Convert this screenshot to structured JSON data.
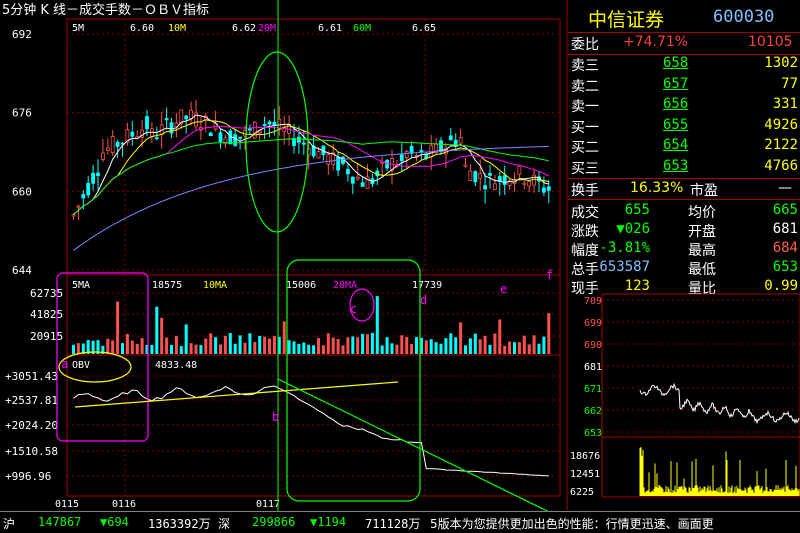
{
  "header": {
    "title": "5分钟  K 线－成交手数－ＯＢＶ指标",
    "ma_labels": [
      {
        "label": "5M",
        "value": "6.60",
        "color": "#ffffff"
      },
      {
        "label": "10M",
        "value": "6.62",
        "color": "#ffff00"
      },
      {
        "label": "20M",
        "value": "6.61",
        "color": "#ff00ff"
      },
      {
        "label": "60M",
        "value": "6.65",
        "color": "#00ff00"
      }
    ]
  },
  "volume_header": [
    {
      "label": "5MA",
      "value": "18575",
      "color": "#ffffff"
    },
    {
      "label": "10MA",
      "value": "15006",
      "color": "#ffff00"
    },
    {
      "label": "20MA",
      "value": "17739",
      "color": "#ff00ff"
    }
  ],
  "obv_header": {
    "label": "OBV",
    "value": "4833.48"
  },
  "annotations": [
    "a",
    "b",
    "c",
    "d",
    "e",
    "f"
  ],
  "panel": {
    "name": "中信证券",
    "code": "600030",
    "weibi_label": "委比",
    "weibi_value": "+74.71%",
    "weicha_value": "10105",
    "order_book": [
      {
        "label": "卖三",
        "price": "658",
        "volume": "1302"
      },
      {
        "label": "卖二",
        "price": "657",
        "volume": "77"
      },
      {
        "label": "卖一",
        "price": "656",
        "volume": "331"
      },
      {
        "label": "买一",
        "price": "655",
        "volume": "4926"
      },
      {
        "label": "买二",
        "price": "654",
        "volume": "2122"
      },
      {
        "label": "买三",
        "price": "653",
        "volume": "4766"
      }
    ],
    "huanshou_label": "换手",
    "huanshou_value": "16.33%",
    "shiying_label": "市盈",
    "shiying_value": "—",
    "stats_left": [
      {
        "label": "成交",
        "value": "655"
      },
      {
        "label": "涨跌",
        "value": "▼026"
      },
      {
        "label": "幅度",
        "value": "-3.81%"
      },
      {
        "label": "总手",
        "value": "653587"
      },
      {
        "label": "现手",
        "value": "123"
      }
    ],
    "stats_right": [
      {
        "label": "均价",
        "value": "665"
      },
      {
        "label": "开盘",
        "value": "681"
      },
      {
        "label": "最高",
        "value": "684"
      },
      {
        "label": "最低",
        "value": "653"
      },
      {
        "label": "量比",
        "value": "0.99"
      }
    ]
  },
  "mini_chart": {
    "price_ticks": [
      "709",
      "699",
      "690",
      "681",
      "671",
      "662",
      "653"
    ],
    "volume_ticks": [
      "18676",
      "12451",
      "6225"
    ]
  },
  "status_bar": {
    "sh_label": "沪",
    "sh_index": "147867",
    "sh_change": "▼694",
    "sh_amount": "1363392万",
    "sz_label": "深",
    "sz_index": "299866",
    "sz_change": "▼1194",
    "sz_amount": "711128万",
    "ticker": "5版本为您提供更加出色的性能：行情更迅速、画面更"
  },
  "chart_data": [
    {
      "type": "candlestick",
      "title": "5分钟 K 线",
      "y_ticks": [
        "692",
        "676",
        "660",
        "644"
      ],
      "ylim": [
        644,
        692
      ],
      "x_ticks": [
        "0115",
        "0116",
        "0117"
      ],
      "ma_series": [
        {
          "name": "5M",
          "last": 6.6
        },
        {
          "name": "10M",
          "last": 6.62
        },
        {
          "name": "20M",
          "last": 6.61
        },
        {
          "name": "60M",
          "last": 6.65
        }
      ]
    },
    {
      "type": "bar",
      "title": "成交手数",
      "y_ticks": [
        "62735",
        "41825",
        "20915"
      ],
      "ylim": [
        0,
        62735
      ],
      "ma_series": [
        {
          "name": "5MA",
          "last": 18575
        },
        {
          "name": "10MA",
          "last": 15006
        },
        {
          "name": "20MA",
          "last": 17739
        }
      ]
    },
    {
      "type": "line",
      "title": "OBV",
      "y_ticks": [
        "+3051.43",
        "+2537.81",
        "+2024.20",
        "+1510.58",
        "+996.96"
      ],
      "ylim": [
        996.96,
        3051.43
      ],
      "last": 4833.48
    }
  ]
}
